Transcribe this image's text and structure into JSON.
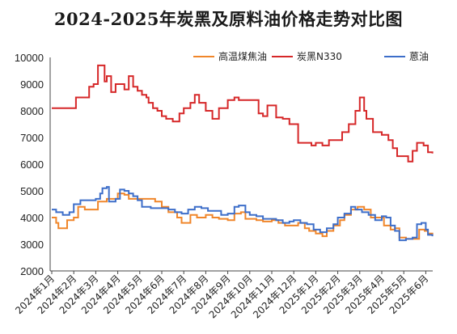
{
  "chart_data": {
    "type": "line",
    "title": "2024-2025年炭黑及原料油价格走势对比图",
    "xlabel": "",
    "ylabel": "",
    "ylim": [
      2000,
      10000
    ],
    "yticks": [
      2000,
      3000,
      4000,
      5000,
      6000,
      7000,
      8000,
      9000,
      10000
    ],
    "xlim": [
      0,
      17.3
    ],
    "xticks": [
      "2024年1月",
      "2024年2月",
      "2024年3月",
      "2024年4月",
      "2024年5月",
      "2024年6月",
      "2024年7月",
      "2024年8月",
      "2024年9月",
      "2024年10月",
      "2024年11月",
      "2024年12月",
      "2025年1月",
      "2025年2月",
      "2025年3月",
      "2025年4月",
      "2025年5月",
      "2025年6月"
    ],
    "x_unit": "months since 2024年1月",
    "grid": false,
    "legend_position": "top-right",
    "series": [
      {
        "name": "高温煤焦油",
        "color": "#f0862a",
        "points": [
          [
            0,
            4000
          ],
          [
            0.2,
            3800
          ],
          [
            0.3,
            3600
          ],
          [
            0.6,
            3600
          ],
          [
            0.7,
            3900
          ],
          [
            1.0,
            4000
          ],
          [
            1.2,
            4400
          ],
          [
            1.5,
            4300
          ],
          [
            1.9,
            4300
          ],
          [
            2.1,
            4600
          ],
          [
            2.5,
            4700
          ],
          [
            2.9,
            4700
          ],
          [
            3.0,
            4900
          ],
          [
            3.3,
            4850
          ],
          [
            3.5,
            4700
          ],
          [
            4.0,
            4700
          ],
          [
            4.5,
            4700
          ],
          [
            4.7,
            4600
          ],
          [
            5.0,
            4400
          ],
          [
            5.3,
            4200
          ],
          [
            5.7,
            4000
          ],
          [
            5.9,
            3800
          ],
          [
            6.2,
            3800
          ],
          [
            6.3,
            4100
          ],
          [
            6.6,
            4000
          ],
          [
            7.0,
            4100
          ],
          [
            7.3,
            4000
          ],
          [
            7.6,
            3950
          ],
          [
            8.0,
            3900
          ],
          [
            8.3,
            4150
          ],
          [
            8.6,
            4200
          ],
          [
            8.8,
            3950
          ],
          [
            9.3,
            3900
          ],
          [
            9.6,
            3850
          ],
          [
            10.0,
            3900
          ],
          [
            10.3,
            3800
          ],
          [
            10.6,
            3700
          ],
          [
            10.9,
            3700
          ],
          [
            11.2,
            3800
          ],
          [
            11.5,
            3600
          ],
          [
            11.7,
            3500
          ],
          [
            12.0,
            3400
          ],
          [
            12.3,
            3300
          ],
          [
            12.5,
            3500
          ],
          [
            12.8,
            3700
          ],
          [
            13.1,
            3900
          ],
          [
            13.3,
            4100
          ],
          [
            13.6,
            4300
          ],
          [
            13.9,
            4400
          ],
          [
            14.2,
            4300
          ],
          [
            14.5,
            4000
          ],
          [
            14.8,
            4000
          ],
          [
            15.1,
            3700
          ],
          [
            15.4,
            3550
          ],
          [
            15.6,
            3600
          ],
          [
            15.8,
            3250
          ],
          [
            16.1,
            3200
          ],
          [
            16.4,
            3200
          ],
          [
            16.7,
            3550
          ],
          [
            16.95,
            3500
          ],
          [
            17.1,
            3400
          ],
          [
            17.3,
            3350
          ]
        ]
      },
      {
        "name": "炭黑N330",
        "color": "#d62728",
        "points": [
          [
            0,
            8100
          ],
          [
            0.5,
            8100
          ],
          [
            1.0,
            8100
          ],
          [
            1.1,
            8500
          ],
          [
            1.5,
            8500
          ],
          [
            1.7,
            8900
          ],
          [
            1.9,
            9000
          ],
          [
            2.1,
            9700
          ],
          [
            2.3,
            9700
          ],
          [
            2.4,
            9100
          ],
          [
            2.5,
            9300
          ],
          [
            2.7,
            8700
          ],
          [
            2.9,
            9000
          ],
          [
            3.1,
            9000
          ],
          [
            3.3,
            8800
          ],
          [
            3.5,
            9300
          ],
          [
            3.7,
            8900
          ],
          [
            3.9,
            8750
          ],
          [
            4.1,
            8600
          ],
          [
            4.3,
            8500
          ],
          [
            4.4,
            8300
          ],
          [
            4.6,
            8100
          ],
          [
            4.8,
            8000
          ],
          [
            5.0,
            7800
          ],
          [
            5.2,
            7700
          ],
          [
            5.5,
            7600
          ],
          [
            5.8,
            7900
          ],
          [
            6.0,
            8100
          ],
          [
            6.3,
            8300
          ],
          [
            6.5,
            8600
          ],
          [
            6.7,
            8300
          ],
          [
            7.0,
            8000
          ],
          [
            7.3,
            7700
          ],
          [
            7.6,
            8100
          ],
          [
            8.0,
            8400
          ],
          [
            8.3,
            8500
          ],
          [
            8.5,
            8400
          ],
          [
            9.0,
            8400
          ],
          [
            9.3,
            8400
          ],
          [
            9.4,
            7900
          ],
          [
            9.6,
            7800
          ],
          [
            9.8,
            8200
          ],
          [
            10.0,
            8200
          ],
          [
            10.2,
            7750
          ],
          [
            10.5,
            7700
          ],
          [
            10.8,
            7500
          ],
          [
            11.0,
            7500
          ],
          [
            11.2,
            6800
          ],
          [
            11.5,
            6800
          ],
          [
            11.8,
            6700
          ],
          [
            12.0,
            6800
          ],
          [
            12.3,
            6700
          ],
          [
            12.6,
            6900
          ],
          [
            12.9,
            6900
          ],
          [
            13.2,
            7200
          ],
          [
            13.5,
            7500
          ],
          [
            13.8,
            8000
          ],
          [
            14.0,
            8500
          ],
          [
            14.2,
            8000
          ],
          [
            14.3,
            7700
          ],
          [
            14.6,
            7200
          ],
          [
            15.0,
            7100
          ],
          [
            15.3,
            6900
          ],
          [
            15.5,
            6600
          ],
          [
            15.7,
            6300
          ],
          [
            16.0,
            6300
          ],
          [
            16.2,
            6100
          ],
          [
            16.4,
            6500
          ],
          [
            16.6,
            6800
          ],
          [
            16.9,
            6700
          ],
          [
            17.1,
            6450
          ],
          [
            17.3,
            6400
          ]
        ]
      },
      {
        "name": "蒽油",
        "color": "#3d6ec9",
        "points": [
          [
            0,
            4300
          ],
          [
            0.2,
            4200
          ],
          [
            0.5,
            4100
          ],
          [
            0.8,
            4200
          ],
          [
            1.0,
            4500
          ],
          [
            1.3,
            4650
          ],
          [
            1.7,
            4650
          ],
          [
            2.0,
            4700
          ],
          [
            2.2,
            4900
          ],
          [
            2.3,
            5100
          ],
          [
            2.5,
            5150
          ],
          [
            2.6,
            4600
          ],
          [
            2.9,
            4700
          ],
          [
            3.1,
            5050
          ],
          [
            3.3,
            5000
          ],
          [
            3.5,
            4900
          ],
          [
            3.7,
            4800
          ],
          [
            3.9,
            4650
          ],
          [
            4.1,
            4400
          ],
          [
            4.5,
            4350
          ],
          [
            5.0,
            4350
          ],
          [
            5.3,
            4300
          ],
          [
            5.6,
            4200
          ],
          [
            5.9,
            4150
          ],
          [
            6.2,
            4300
          ],
          [
            6.5,
            4400
          ],
          [
            6.8,
            4350
          ],
          [
            7.1,
            4250
          ],
          [
            7.4,
            4250
          ],
          [
            7.7,
            4100
          ],
          [
            8.0,
            4150
          ],
          [
            8.3,
            4400
          ],
          [
            8.5,
            4450
          ],
          [
            8.8,
            4200
          ],
          [
            9.0,
            4100
          ],
          [
            9.3,
            4050
          ],
          [
            9.6,
            3950
          ],
          [
            9.9,
            3950
          ],
          [
            10.2,
            3900
          ],
          [
            10.5,
            3800
          ],
          [
            10.8,
            3850
          ],
          [
            11.0,
            3900
          ],
          [
            11.3,
            3800
          ],
          [
            11.6,
            3750
          ],
          [
            11.9,
            3550
          ],
          [
            12.2,
            3450
          ],
          [
            12.5,
            3600
          ],
          [
            12.8,
            3750
          ],
          [
            13.0,
            4000
          ],
          [
            13.3,
            4150
          ],
          [
            13.6,
            4400
          ],
          [
            13.8,
            4300
          ],
          [
            14.1,
            4200
          ],
          [
            14.4,
            4100
          ],
          [
            14.7,
            3900
          ],
          [
            15.0,
            4050
          ],
          [
            15.2,
            4000
          ],
          [
            15.4,
            3700
          ],
          [
            15.6,
            3500
          ],
          [
            15.8,
            3150
          ],
          [
            16.1,
            3200
          ],
          [
            16.4,
            3250
          ],
          [
            16.6,
            3750
          ],
          [
            16.8,
            3800
          ],
          [
            17.0,
            3550
          ],
          [
            17.1,
            3350
          ],
          [
            17.3,
            3300
          ]
        ]
      }
    ]
  }
}
